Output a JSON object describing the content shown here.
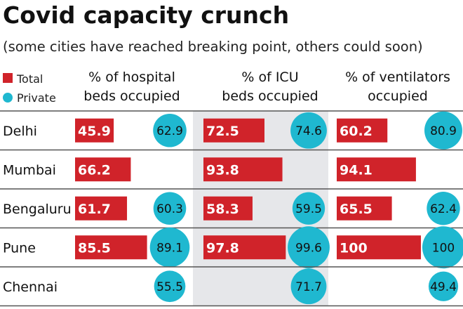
{
  "chart_data": {
    "type": "table",
    "title": "Covid capacity crunch",
    "subtitle": "(some cities have reached breaking point, others could soon)",
    "legend": [
      {
        "name": "Total",
        "color": "#d0232a",
        "shape": "square"
      },
      {
        "name": "Private",
        "color": "#1fb8d0",
        "shape": "circle"
      }
    ],
    "columns": [
      {
        "label_lines": [
          "% of hospital",
          "beds occupied"
        ]
      },
      {
        "label_lines": [
          "% of ICU",
          "beds occupied"
        ]
      },
      {
        "label_lines": [
          "% of ventilators",
          "occupied"
        ]
      }
    ],
    "cities": [
      "Delhi",
      "Mumbai",
      "Bengaluru",
      "Pune",
      "Chennai"
    ],
    "total": [
      [
        45.9,
        72.5,
        60.2
      ],
      [
        66.2,
        93.8,
        94.1
      ],
      [
        61.7,
        58.3,
        65.5
      ],
      [
        85.5,
        97.8,
        100
      ],
      [
        null,
        null,
        null
      ]
    ],
    "private": [
      [
        62.9,
        74.6,
        80.9
      ],
      [
        null,
        null,
        null
      ],
      [
        60.3,
        59.5,
        62.4
      ],
      [
        89.1,
        99.6,
        100
      ],
      [
        55.5,
        71.7,
        49.4
      ]
    ],
    "colors": {
      "total": "#d0232a",
      "private": "#1fb8d0",
      "shaded_column": "#e6e7ea"
    }
  }
}
